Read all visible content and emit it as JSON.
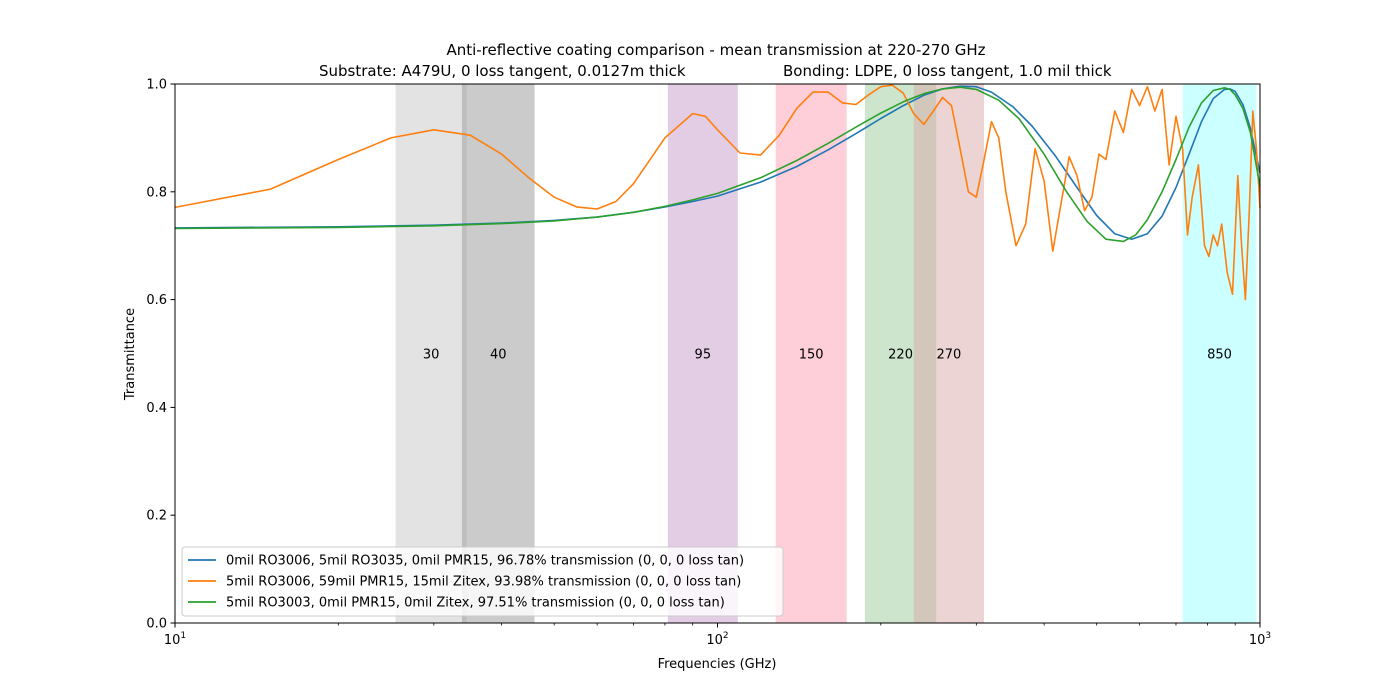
{
  "chart_data": {
    "type": "line",
    "title": "Anti-reflective coating comparison - mean transmission at 220-270 GHz",
    "subtitle_left": "Substrate: A479U, 0 loss tangent, 0.0127m thick",
    "subtitle_right": "Bonding: LDPE, 0 loss tangent, 1.0 mil thick",
    "xlabel": "Frequencies (GHz)",
    "ylabel": "Transmittance",
    "xscale": "log",
    "xlim": [
      10,
      1000
    ],
    "ylim": [
      0,
      1
    ],
    "x_ticks": [
      {
        "value": 10,
        "base": "10",
        "exp": "1"
      },
      {
        "value": 100,
        "base": "10",
        "exp": "2"
      },
      {
        "value": 1000,
        "base": "10",
        "exp": "3"
      }
    ],
    "y_ticks": [
      {
        "value": 0.0,
        "label": "0.0"
      },
      {
        "value": 0.2,
        "label": "0.2"
      },
      {
        "value": 0.4,
        "label": "0.4"
      },
      {
        "value": 0.6,
        "label": "0.6"
      },
      {
        "value": 0.8,
        "label": "0.8"
      },
      {
        "value": 1.0,
        "label": "1.0"
      }
    ],
    "legend_position": "lower-left",
    "grid": false,
    "bands": [
      {
        "label": "30",
        "lo": 25.5,
        "hi": 34.5,
        "color": "#c8c8c8",
        "opacity": 0.5
      },
      {
        "label": "40",
        "lo": 33.8,
        "hi": 46.0,
        "color": "#a0a0a0",
        "opacity": 0.55
      },
      {
        "label": "95",
        "lo": 81.0,
        "hi": 109.0,
        "color": "#c89ccc",
        "opacity": 0.5
      },
      {
        "label": "150",
        "lo": 128.0,
        "hi": 173.0,
        "color": "#ffa0b4",
        "opacity": 0.5
      },
      {
        "label": "220",
        "lo": 187.0,
        "hi": 253.0,
        "color": "#9bc99b",
        "opacity": 0.5
      },
      {
        "label": "270",
        "lo": 230.0,
        "hi": 310.0,
        "color": "#d9aaaa",
        "opacity": 0.5
      },
      {
        "label": "850",
        "lo": 720.0,
        "hi": 985.0,
        "color": "#99ffff",
        "opacity": 0.5
      }
    ],
    "series": [
      {
        "name": "0mil RO3006, 5mil RO3035, 0mil PMR15, 96.78% transmission (0, 0, 0 loss tan)",
        "color": "#1f77b4",
        "x": [
          10,
          20,
          30,
          40,
          50,
          60,
          70,
          80,
          90,
          100,
          120,
          140,
          160,
          180,
          200,
          220,
          240,
          260,
          280,
          300,
          320,
          350,
          380,
          420,
          460,
          500,
          540,
          580,
          620,
          660,
          700,
          740,
          780,
          820,
          860,
          880,
          900,
          930,
          960,
          1000
        ],
        "y": [
          0.733,
          0.735,
          0.738,
          0.742,
          0.747,
          0.753,
          0.762,
          0.772,
          0.782,
          0.792,
          0.818,
          0.847,
          0.878,
          0.908,
          0.936,
          0.96,
          0.979,
          0.991,
          0.996,
          0.995,
          0.985,
          0.958,
          0.922,
          0.866,
          0.808,
          0.756,
          0.722,
          0.712,
          0.722,
          0.755,
          0.808,
          0.87,
          0.93,
          0.973,
          0.99,
          0.991,
          0.986,
          0.962,
          0.918,
          0.835
        ]
      },
      {
        "name": "5mil RO3006, 59mil PMR15, 15mil Zitex, 93.98% transmission (0, 0, 0 loss tan)",
        "color": "#ff7f0e",
        "x": [
          10,
          15,
          20,
          25,
          30,
          35,
          40,
          45,
          50,
          55,
          60,
          65,
          70,
          80,
          90,
          95,
          100,
          110,
          120,
          130,
          140,
          150,
          160,
          170,
          180,
          190,
          200,
          210,
          220,
          230,
          240,
          250,
          260,
          270,
          280,
          290,
          300,
          310,
          320,
          330,
          340,
          355,
          370,
          385,
          400,
          415,
          430,
          445,
          460,
          475,
          490,
          505,
          520,
          540,
          560,
          580,
          600,
          620,
          640,
          660,
          680,
          700,
          720,
          735,
          750,
          770,
          790,
          805,
          820,
          835,
          850,
          870,
          890,
          910,
          925,
          940,
          955,
          970,
          985,
          1000
        ],
        "y": [
          0.771,
          0.805,
          0.86,
          0.9,
          0.915,
          0.905,
          0.87,
          0.825,
          0.79,
          0.772,
          0.768,
          0.782,
          0.815,
          0.9,
          0.945,
          0.94,
          0.915,
          0.872,
          0.868,
          0.905,
          0.955,
          0.985,
          0.985,
          0.965,
          0.962,
          0.98,
          0.995,
          0.998,
          0.983,
          0.945,
          0.925,
          0.95,
          0.975,
          0.96,
          0.88,
          0.8,
          0.79,
          0.86,
          0.93,
          0.9,
          0.8,
          0.7,
          0.74,
          0.88,
          0.82,
          0.69,
          0.78,
          0.865,
          0.83,
          0.765,
          0.79,
          0.87,
          0.86,
          0.95,
          0.91,
          0.99,
          0.96,
          0.995,
          0.95,
          0.99,
          0.85,
          0.94,
          0.88,
          0.72,
          0.79,
          0.85,
          0.7,
          0.68,
          0.72,
          0.7,
          0.74,
          0.65,
          0.61,
          0.83,
          0.7,
          0.6,
          0.76,
          0.95,
          0.88,
          0.77
        ]
      },
      {
        "name": "5mil RO3003, 0mil PMR15, 0mil Zitex, 97.51% transmission (0, 0, 0 loss tan)",
        "color": "#2ca02c",
        "x": [
          10,
          20,
          30,
          40,
          50,
          60,
          70,
          80,
          90,
          100,
          120,
          140,
          160,
          180,
          200,
          220,
          240,
          260,
          280,
          300,
          330,
          360,
          400,
          440,
          480,
          520,
          560,
          590,
          620,
          660,
          700,
          740,
          780,
          820,
          860,
          880,
          900,
          930,
          960,
          1000
        ],
        "y": [
          0.732,
          0.734,
          0.737,
          0.741,
          0.746,
          0.753,
          0.762,
          0.773,
          0.785,
          0.797,
          0.826,
          0.858,
          0.89,
          0.92,
          0.946,
          0.967,
          0.982,
          0.991,
          0.994,
          0.99,
          0.97,
          0.935,
          0.87,
          0.8,
          0.745,
          0.712,
          0.708,
          0.72,
          0.748,
          0.8,
          0.86,
          0.92,
          0.965,
          0.988,
          0.993,
          0.99,
          0.98,
          0.955,
          0.91,
          0.81
        ]
      }
    ]
  }
}
